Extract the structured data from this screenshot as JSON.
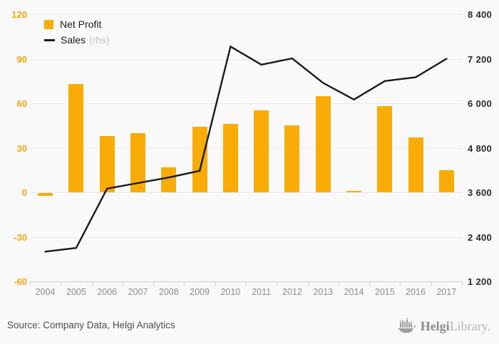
{
  "chart_data": {
    "type": "bar+line",
    "categories": [
      "2004",
      "2005",
      "2006",
      "2007",
      "2008",
      "2009",
      "2010",
      "2011",
      "2012",
      "2013",
      "2014",
      "2015",
      "2016",
      "2017"
    ],
    "series": [
      {
        "name": "Net Profit",
        "type": "bar",
        "axis": "left",
        "color": "#F8AC05",
        "values": [
          -2,
          73,
          38,
          40,
          17,
          44,
          46,
          55,
          45,
          65,
          1,
          58,
          37,
          15
        ]
      },
      {
        "name": "Sales",
        "type": "line",
        "axis": "right",
        "color": "#1a1a1a",
        "values": [
          2000,
          2100,
          3700,
          3850,
          4000,
          4180,
          7530,
          7040,
          7210,
          6550,
          6100,
          6600,
          6700,
          7200
        ]
      }
    ],
    "left_axis": {
      "min": -60,
      "max": 120,
      "step": 30,
      "color": "#F2A60A",
      "ticks": [
        "120",
        "90",
        "60",
        "30",
        "0",
        "-30",
        "-60"
      ]
    },
    "right_axis": {
      "min": 1200,
      "max": 8400,
      "step": 1200,
      "color": "#2b2b2b",
      "ticks": [
        "8 400",
        "7 200",
        "6 000",
        "4 800",
        "3 600",
        "2 400",
        "1 200"
      ]
    },
    "legend": [
      {
        "label": "Net Profit",
        "suffix": ""
      },
      {
        "label": "Sales",
        "suffix": "(rhs)"
      }
    ],
    "grid": true,
    "legend_position": "top-left",
    "title": "",
    "xlabel": "",
    "ylabel": ""
  },
  "footer": {
    "source": "Source: Company Data, Helgi Analytics",
    "logo": {
      "brand_bold": "Helgi",
      "brand_light": "Library."
    }
  }
}
